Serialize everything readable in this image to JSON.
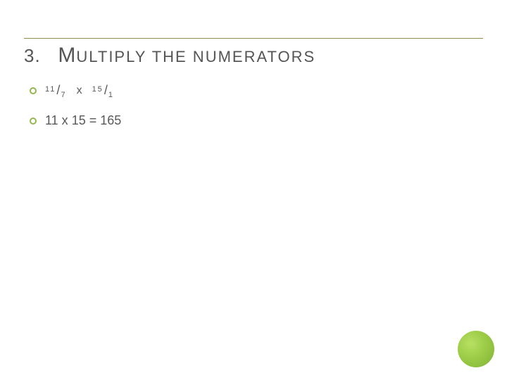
{
  "title": {
    "number": "3.",
    "first_letter": "M",
    "rest": "ULTIPLY THE NUMERATORS"
  },
  "line1": {
    "frac1_num": "11",
    "frac1_slash": "/",
    "frac1_den": "7",
    "operator": "x",
    "frac2_num": "15",
    "frac2_slash": "/",
    "frac2_den": "1"
  },
  "line2": {
    "text": "11 x 15 = 165"
  },
  "colors": {
    "accent_green": "#8cc63f",
    "rule_color": "#948a54",
    "text_color": "#595959",
    "background": "#ffffff"
  }
}
